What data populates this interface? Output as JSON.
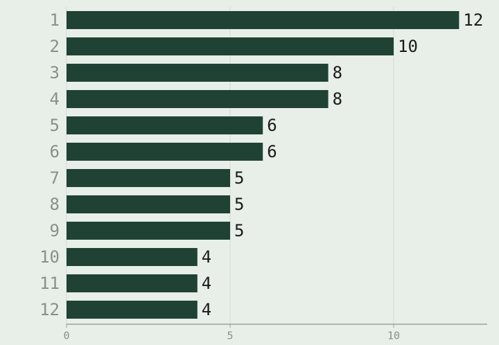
{
  "chart_data": {
    "type": "hbar",
    "categories": [
      "1",
      "2",
      "3",
      "4",
      "5",
      "6",
      "7",
      "8",
      "9",
      "10",
      "11",
      "12"
    ],
    "values": [
      12,
      10,
      8,
      8,
      6,
      6,
      5,
      5,
      5,
      4,
      4,
      4
    ],
    "color": "#1f4235",
    "xlim": [
      0,
      12.86
    ],
    "xticks": [
      0,
      5,
      10
    ],
    "grid": true
  }
}
